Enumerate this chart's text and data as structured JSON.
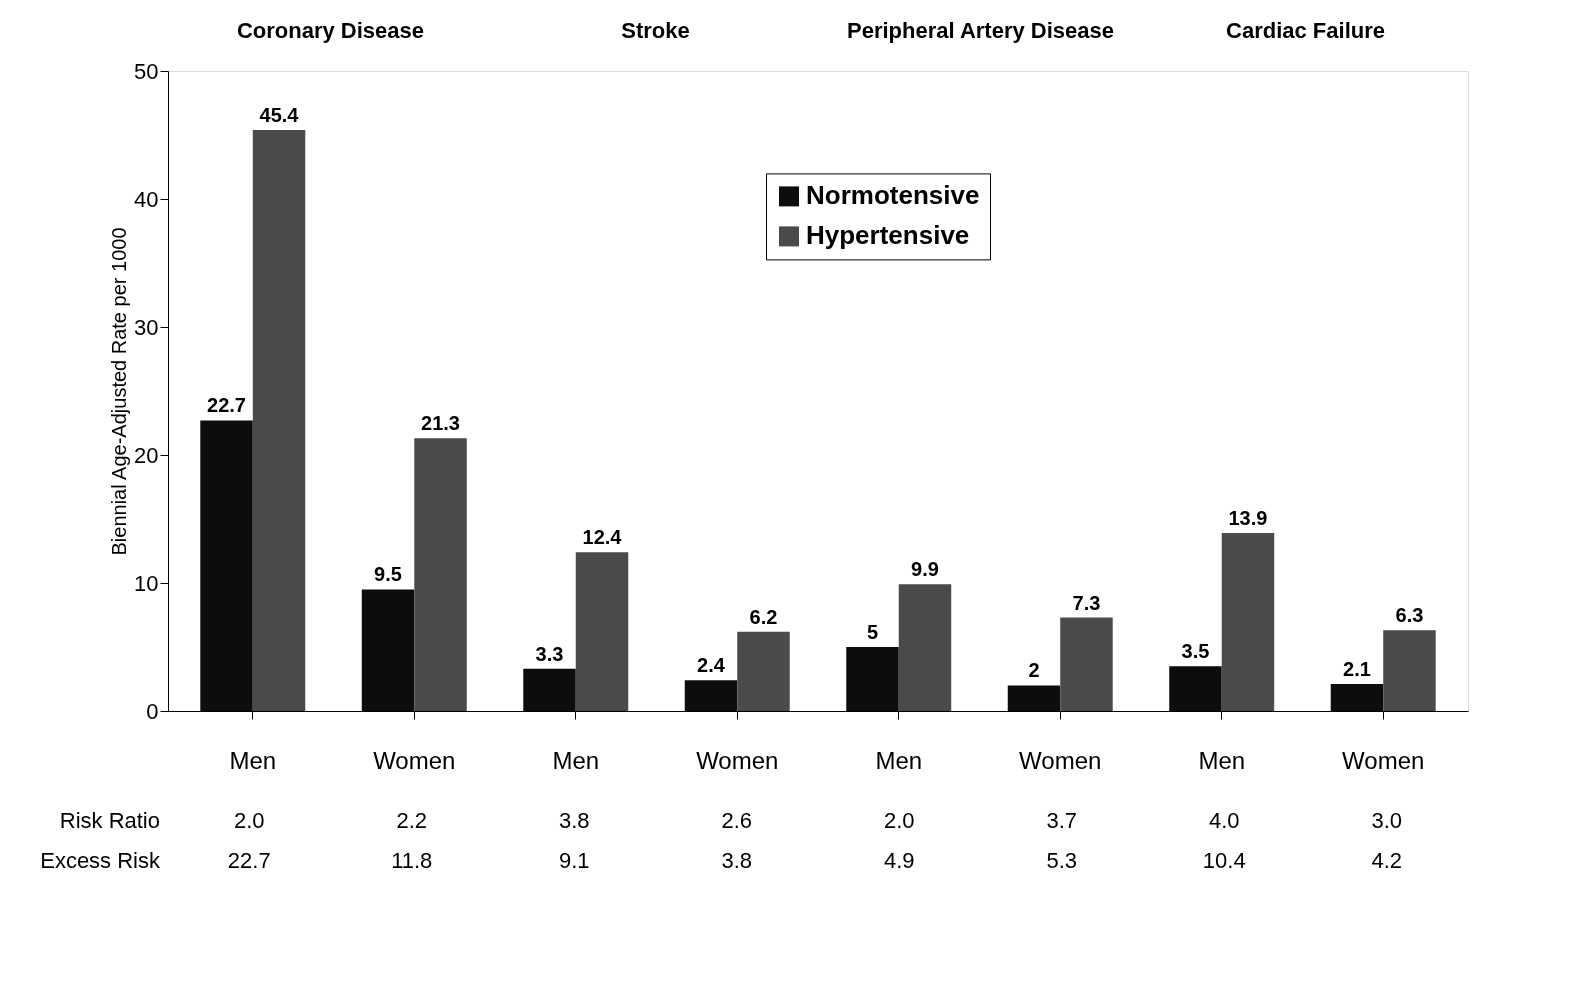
{
  "chart_data": {
    "type": "bar",
    "ylabel": "Biennial Age-Adjusted Rate per 1000",
    "categories": [
      "Men",
      "Women",
      "Men",
      "Women",
      "Men",
      "Women",
      "Men",
      "Women"
    ],
    "series": [
      {
        "name": "Normotensive",
        "color": "#0d0d0d",
        "values": [
          22.7,
          9.5,
          3.3,
          2.4,
          5,
          2,
          3.5,
          2.1
        ]
      },
      {
        "name": "Hypertensive",
        "color": "#4a4a4a",
        "values": [
          45.4,
          21.3,
          12.4,
          6.2,
          9.9,
          7.3,
          13.9,
          6.3
        ]
      }
    ],
    "ylim": [
      0,
      50
    ],
    "yticks": [
      0,
      10,
      20,
      30,
      40,
      50
    ],
    "data_labels": true,
    "legend": "top",
    "grid": false,
    "annotations": [
      "Coronary Disease",
      "Stroke",
      "Peripheral Artery Disease",
      "Cardiac Failure",
      "Risk Ratio",
      "2.0",
      "2.2",
      "3.8",
      "2.6",
      "2.0",
      "3.7",
      "4.0",
      "3.0",
      "Excess Risk",
      "22.7",
      "11.8",
      "9.1",
      "3.8",
      "4.9",
      "5.3",
      "10.4",
      "4.2"
    ]
  }
}
